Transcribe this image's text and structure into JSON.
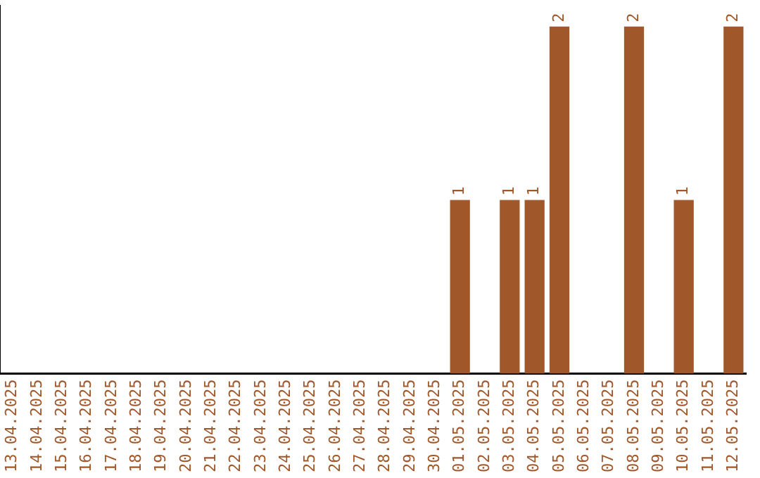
{
  "chart_data": {
    "type": "bar",
    "categories": [
      "13.04.2025",
      "14.04.2025",
      "15.04.2025",
      "16.04.2025",
      "17.04.2025",
      "18.04.2025",
      "19.04.2025",
      "20.04.2025",
      "21.04.2025",
      "22.04.2025",
      "23.04.2025",
      "24.04.2025",
      "25.04.2025",
      "26.04.2025",
      "27.04.2025",
      "28.04.2025",
      "29.04.2025",
      "30.04.2025",
      "01.05.2025",
      "02.05.2025",
      "03.05.2025",
      "04.05.2025",
      "05.05.2025",
      "06.05.2025",
      "07.05.2025",
      "08.05.2025",
      "09.05.2025",
      "10.05.2025",
      "11.05.2025",
      "12.05.2025"
    ],
    "values": [
      null,
      null,
      null,
      null,
      null,
      null,
      null,
      null,
      null,
      null,
      null,
      null,
      null,
      null,
      null,
      null,
      null,
      null,
      1,
      null,
      1,
      1,
      2,
      null,
      null,
      2,
      null,
      1,
      null,
      2
    ],
    "color": "#a0572a",
    "data_labels": true,
    "grid": false,
    "legend": false,
    "tick_labels": "x"
  }
}
